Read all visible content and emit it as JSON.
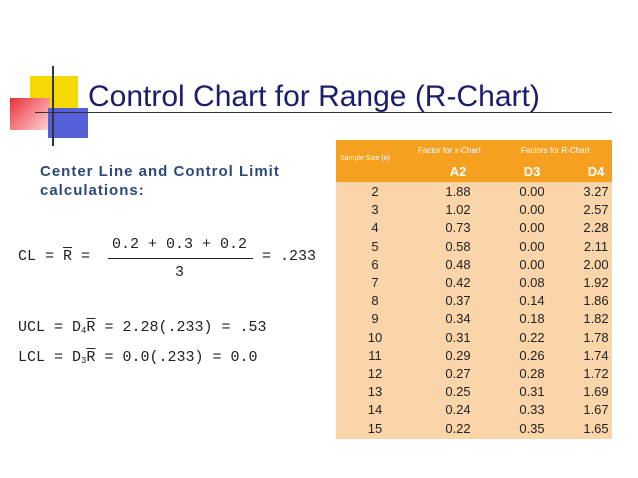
{
  "header": {
    "title": "Control Chart for Range (R-Chart)"
  },
  "subtitle": [
    "Center Line and Control Limit",
    "calculations:"
  ],
  "formulas": {
    "cl": {
      "lhs": "CL = ",
      "bar": "R",
      "eq": " =",
      "numerator": "0.2 + 0.3 + 0.2",
      "denominator": "3",
      "result": "= .233"
    },
    "ucl": {
      "lhs": "UCL = D",
      "sub": "4",
      "bar": "R",
      "rhs": " = 2.28(.233) = .53"
    },
    "lcl": {
      "lhs": "LCL = D",
      "sub": "3",
      "bar": "R",
      "rhs": " = 0.0(.233) = 0.0"
    }
  },
  "table": {
    "group_headers": {
      "sample": "Sample Size (n)",
      "x_chart": "Factor for x-Chart",
      "r_chart": "Factors for R-Chart"
    },
    "columns": [
      "A2",
      "D3",
      "D4"
    ],
    "rows": [
      [
        "2",
        "1.88",
        "0.00",
        "3.27"
      ],
      [
        "3",
        "1.02",
        "0.00",
        "2.57"
      ],
      [
        "4",
        "0.73",
        "0.00",
        "2.28"
      ],
      [
        "5",
        "0.58",
        "0.00",
        "2.11"
      ],
      [
        "6",
        "0.48",
        "0.00",
        "2.00"
      ],
      [
        "7",
        "0.42",
        "0.08",
        "1.92"
      ],
      [
        "8",
        "0.37",
        "0.14",
        "1.86"
      ],
      [
        "9",
        "0.34",
        "0.18",
        "1.82"
      ],
      [
        "10",
        "0.31",
        "0.22",
        "1.78"
      ],
      [
        "11",
        "0.29",
        "0.26",
        "1.74"
      ],
      [
        "12",
        "0.27",
        "0.28",
        "1.72"
      ],
      [
        "13",
        "0.25",
        "0.31",
        "1.69"
      ],
      [
        "14",
        "0.24",
        "0.33",
        "1.67"
      ],
      [
        "15",
        "0.22",
        "0.35",
        "1.65"
      ]
    ]
  }
}
